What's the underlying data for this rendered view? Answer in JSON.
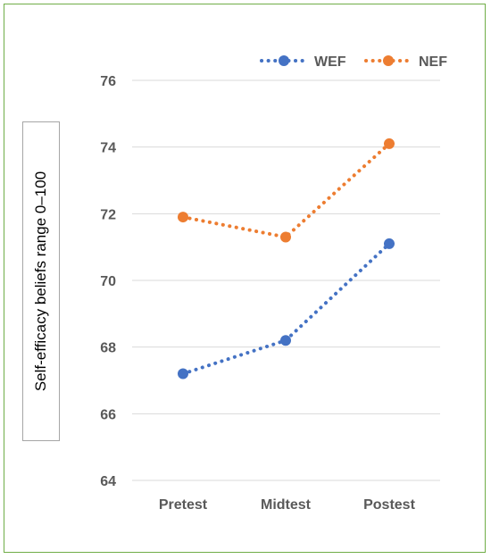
{
  "chart_data": {
    "type": "line",
    "title": "",
    "xlabel": "",
    "ylabel": "Self-efficacy beliefs range 0–100",
    "categories": [
      "Pretest",
      "Midtest",
      "Postest"
    ],
    "ylim": [
      64,
      76
    ],
    "yticks": [
      64,
      66,
      68,
      70,
      72,
      74,
      76
    ],
    "grid": true,
    "legend_position": "top-right",
    "series": [
      {
        "name": "WEF",
        "values": [
          67.2,
          68.2,
          71.1
        ],
        "color": "#4472c4",
        "line_style": "dotted",
        "marker": "circle"
      },
      {
        "name": "NEF",
        "values": [
          71.9,
          71.3,
          74.1
        ],
        "color": "#ed7d31",
        "line_style": "dotted",
        "marker": "circle"
      }
    ]
  }
}
